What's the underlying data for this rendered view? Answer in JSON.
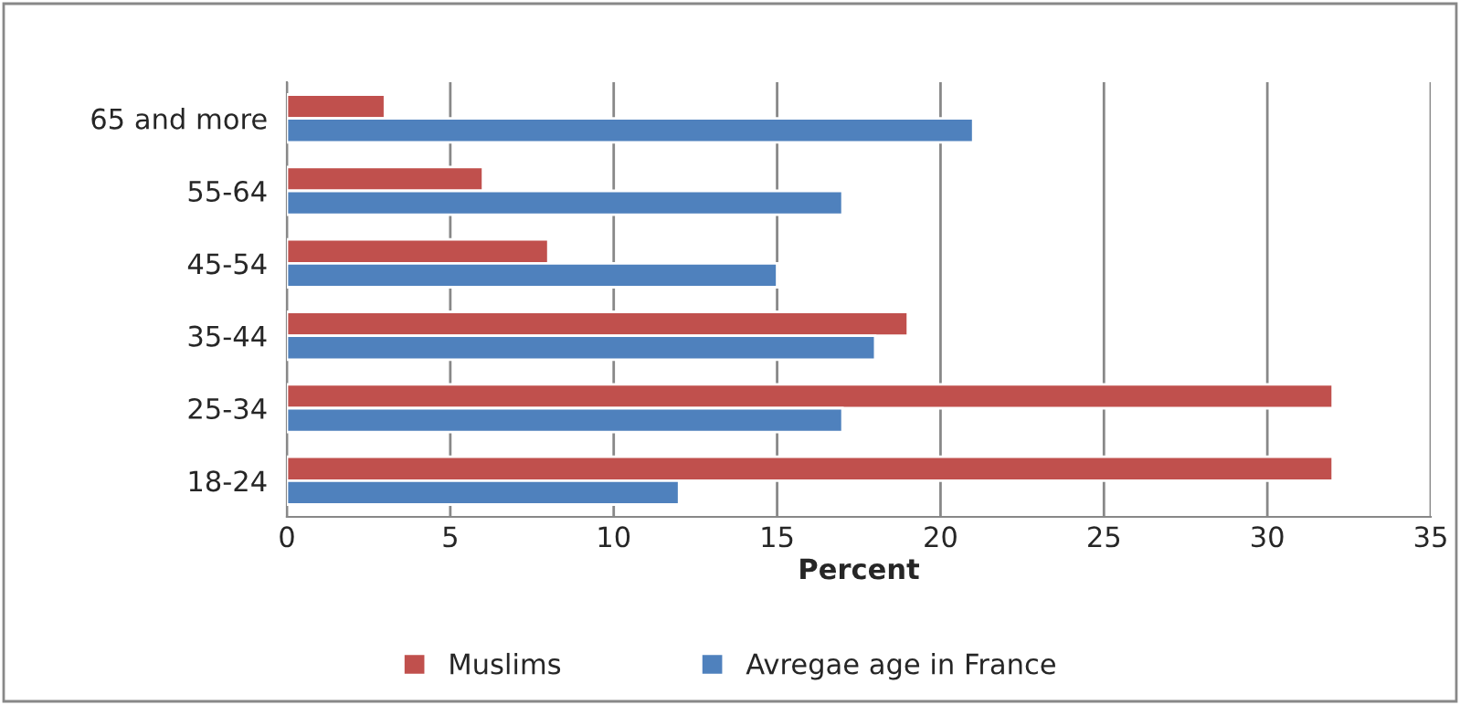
{
  "chart_data": {
    "type": "bar",
    "orientation": "horizontal",
    "xlabel": "Percent",
    "categories": [
      "65 and more",
      "55-64",
      "45-54",
      "35-44",
      "25-34",
      "18-24"
    ],
    "series": [
      {
        "name": "Muslims",
        "color": "#c0504d",
        "values": [
          3,
          6,
          8,
          19,
          32,
          32
        ]
      },
      {
        "name": "Avregae age in France",
        "color": "#4f81bd",
        "values": [
          21,
          17,
          15,
          18,
          17,
          12
        ]
      }
    ],
    "xlim": [
      0,
      35
    ],
    "xticks": [
      0,
      5,
      10,
      15,
      20,
      25,
      30,
      35
    ],
    "grid": "x",
    "legend": "bottom"
  }
}
